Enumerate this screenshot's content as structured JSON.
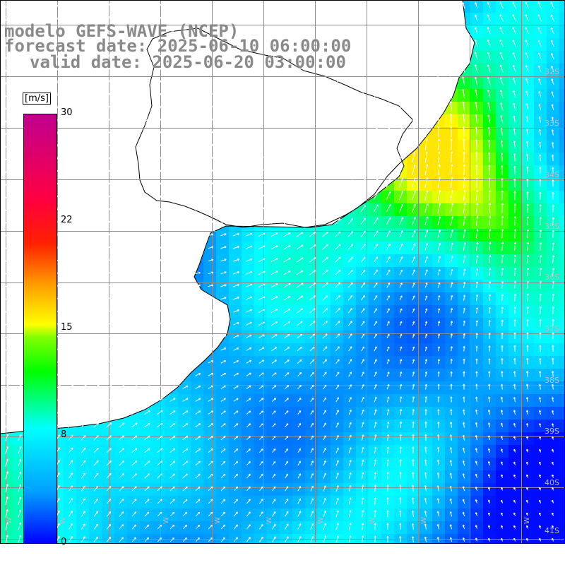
{
  "title": {
    "line1": "modelo GEFS-WAVE (NCEP)",
    "line2": "forecast date: 2025-06-10 06:00:00",
    "line3": "valid date: 2025-06-20 03:00:00"
  },
  "colorbar": {
    "unit": "[m/s]",
    "ticks": [
      {
        "value": 30,
        "label": "30"
      },
      {
        "value": 22,
        "label": "22"
      },
      {
        "value": 15,
        "label": "15"
      },
      {
        "value": 8,
        "label": "8"
      },
      {
        "value": 0,
        "label": "0"
      }
    ],
    "range": [
      0,
      30
    ],
    "colors": [
      "#0000ff",
      "#00a0ff",
      "#00ffff",
      "#00ff00",
      "#ffff00",
      "#ff8000",
      "#ff0000",
      "#c00090"
    ]
  },
  "map": {
    "lat_labels": [
      "32S",
      "33S",
      "34S",
      "35S",
      "36S",
      "37S",
      "38S",
      "39S",
      "40S",
      "41S"
    ],
    "lon_labels": [
      "W",
      "W",
      "W",
      "W",
      "W",
      "W",
      "W",
      "W",
      "W"
    ],
    "colors": {
      "land": "#ffffff",
      "grid": "#8c8c8c",
      "coast": "#000000",
      "arrow": "#ffffff"
    }
  }
}
